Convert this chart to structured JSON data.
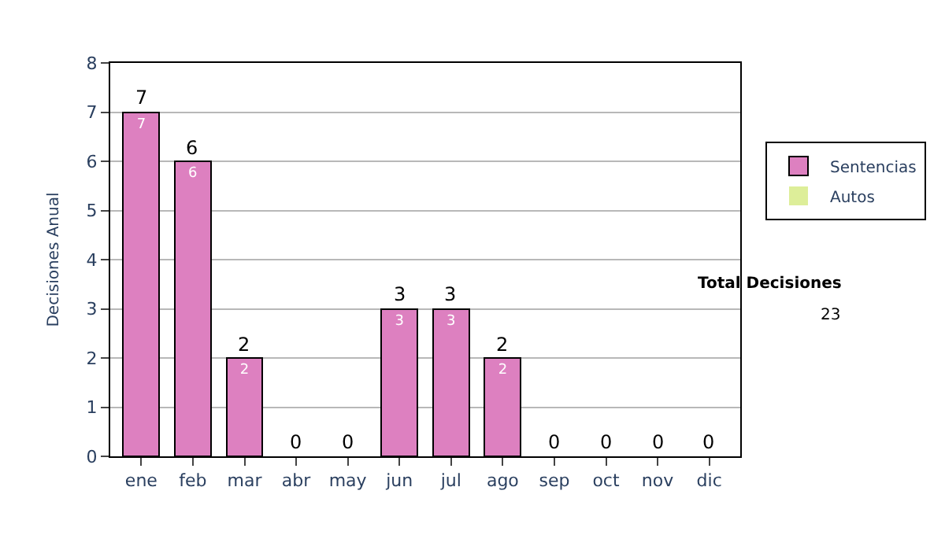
{
  "chart_data": {
    "type": "bar",
    "stacked": true,
    "ylabel": "Decisiones Anual",
    "categories": [
      "ene",
      "feb",
      "mar",
      "abr",
      "may",
      "jun",
      "jul",
      "ago",
      "sep",
      "oct",
      "nov",
      "dic"
    ],
    "series": [
      {
        "name": "Sentencias",
        "color": "#dd80c0",
        "values": [
          7,
          6,
          2,
          0,
          0,
          3,
          3,
          2,
          0,
          0,
          0,
          0
        ],
        "value_labels": [
          "7",
          "6",
          "2",
          null,
          null,
          "3",
          "3",
          "2",
          null,
          null,
          null,
          null
        ]
      },
      {
        "name": "Autos",
        "color": "#ddee99",
        "values": [
          0,
          0,
          0,
          0,
          0,
          0,
          0,
          0,
          0,
          0,
          0,
          0
        ]
      }
    ],
    "totals": [
      "7",
      "6",
      "2",
      "0",
      "0",
      "3",
      "3",
      "2",
      "0",
      "0",
      "0",
      "0"
    ],
    "ylim": [
      0,
      8
    ],
    "yticks": [
      0,
      1,
      2,
      3,
      4,
      5,
      6,
      7,
      8
    ],
    "grid": "y",
    "legend": "right",
    "annotations": [
      "Total Decisiones",
      "23"
    ]
  }
}
